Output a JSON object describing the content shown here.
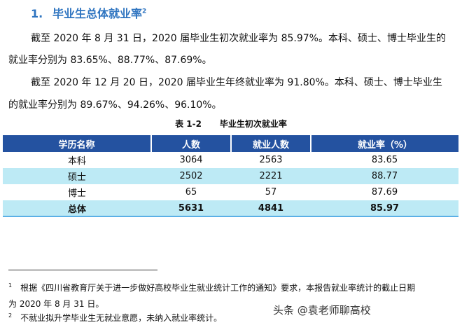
{
  "heading": {
    "number": "1.",
    "title": "毕业生总体就业率",
    "footnote_ref": "2"
  },
  "paragraphs": [
    "截至 2020 年 8 月 31 日，2020 届毕业生初次就业率为 85.97%。本科、硕士、博士毕业生的",
    "就业率分别为 83.65%、88.77%、87.69%。",
    "截至 2020 年 12 月 20 日，2020 届毕业生年终就业率为 91.80%。本科、硕士、博士毕业生",
    "的就业率分别为 89.67%、94.26%、96.10%。"
  ],
  "caption": {
    "label": "表 1-2",
    "title": "毕业生初次就业率"
  },
  "table": {
    "headers": [
      "学历名称",
      "人数",
      "就业人数",
      "就业率（%）"
    ],
    "rows": [
      [
        "本科",
        "3064",
        "2563",
        "83.65"
      ],
      [
        "硕士",
        "2502",
        "2221",
        "88.77"
      ],
      [
        "博士",
        "65",
        "57",
        "87.69"
      ],
      [
        "总体",
        "5631",
        "4841",
        "85.97"
      ]
    ]
  },
  "footnotes": [
    {
      "ref": "1",
      "text": "根据《四川省教育厅关于进一步做好高校毕业生就业统计工作的通知》要求，本报告就业率统计的截止日期",
      "cont": "为 2020 年 8 月 31 日。"
    },
    {
      "ref": "2",
      "text": "不就业拟升学毕业生无就业意愿，未纳入就业率统计。"
    }
  ],
  "watermark": "头条 @袁老师聊高校",
  "colors": {
    "heading": "#2e74c0",
    "table_header": "#2452a0",
    "row_alt": "#bdeaf5"
  }
}
